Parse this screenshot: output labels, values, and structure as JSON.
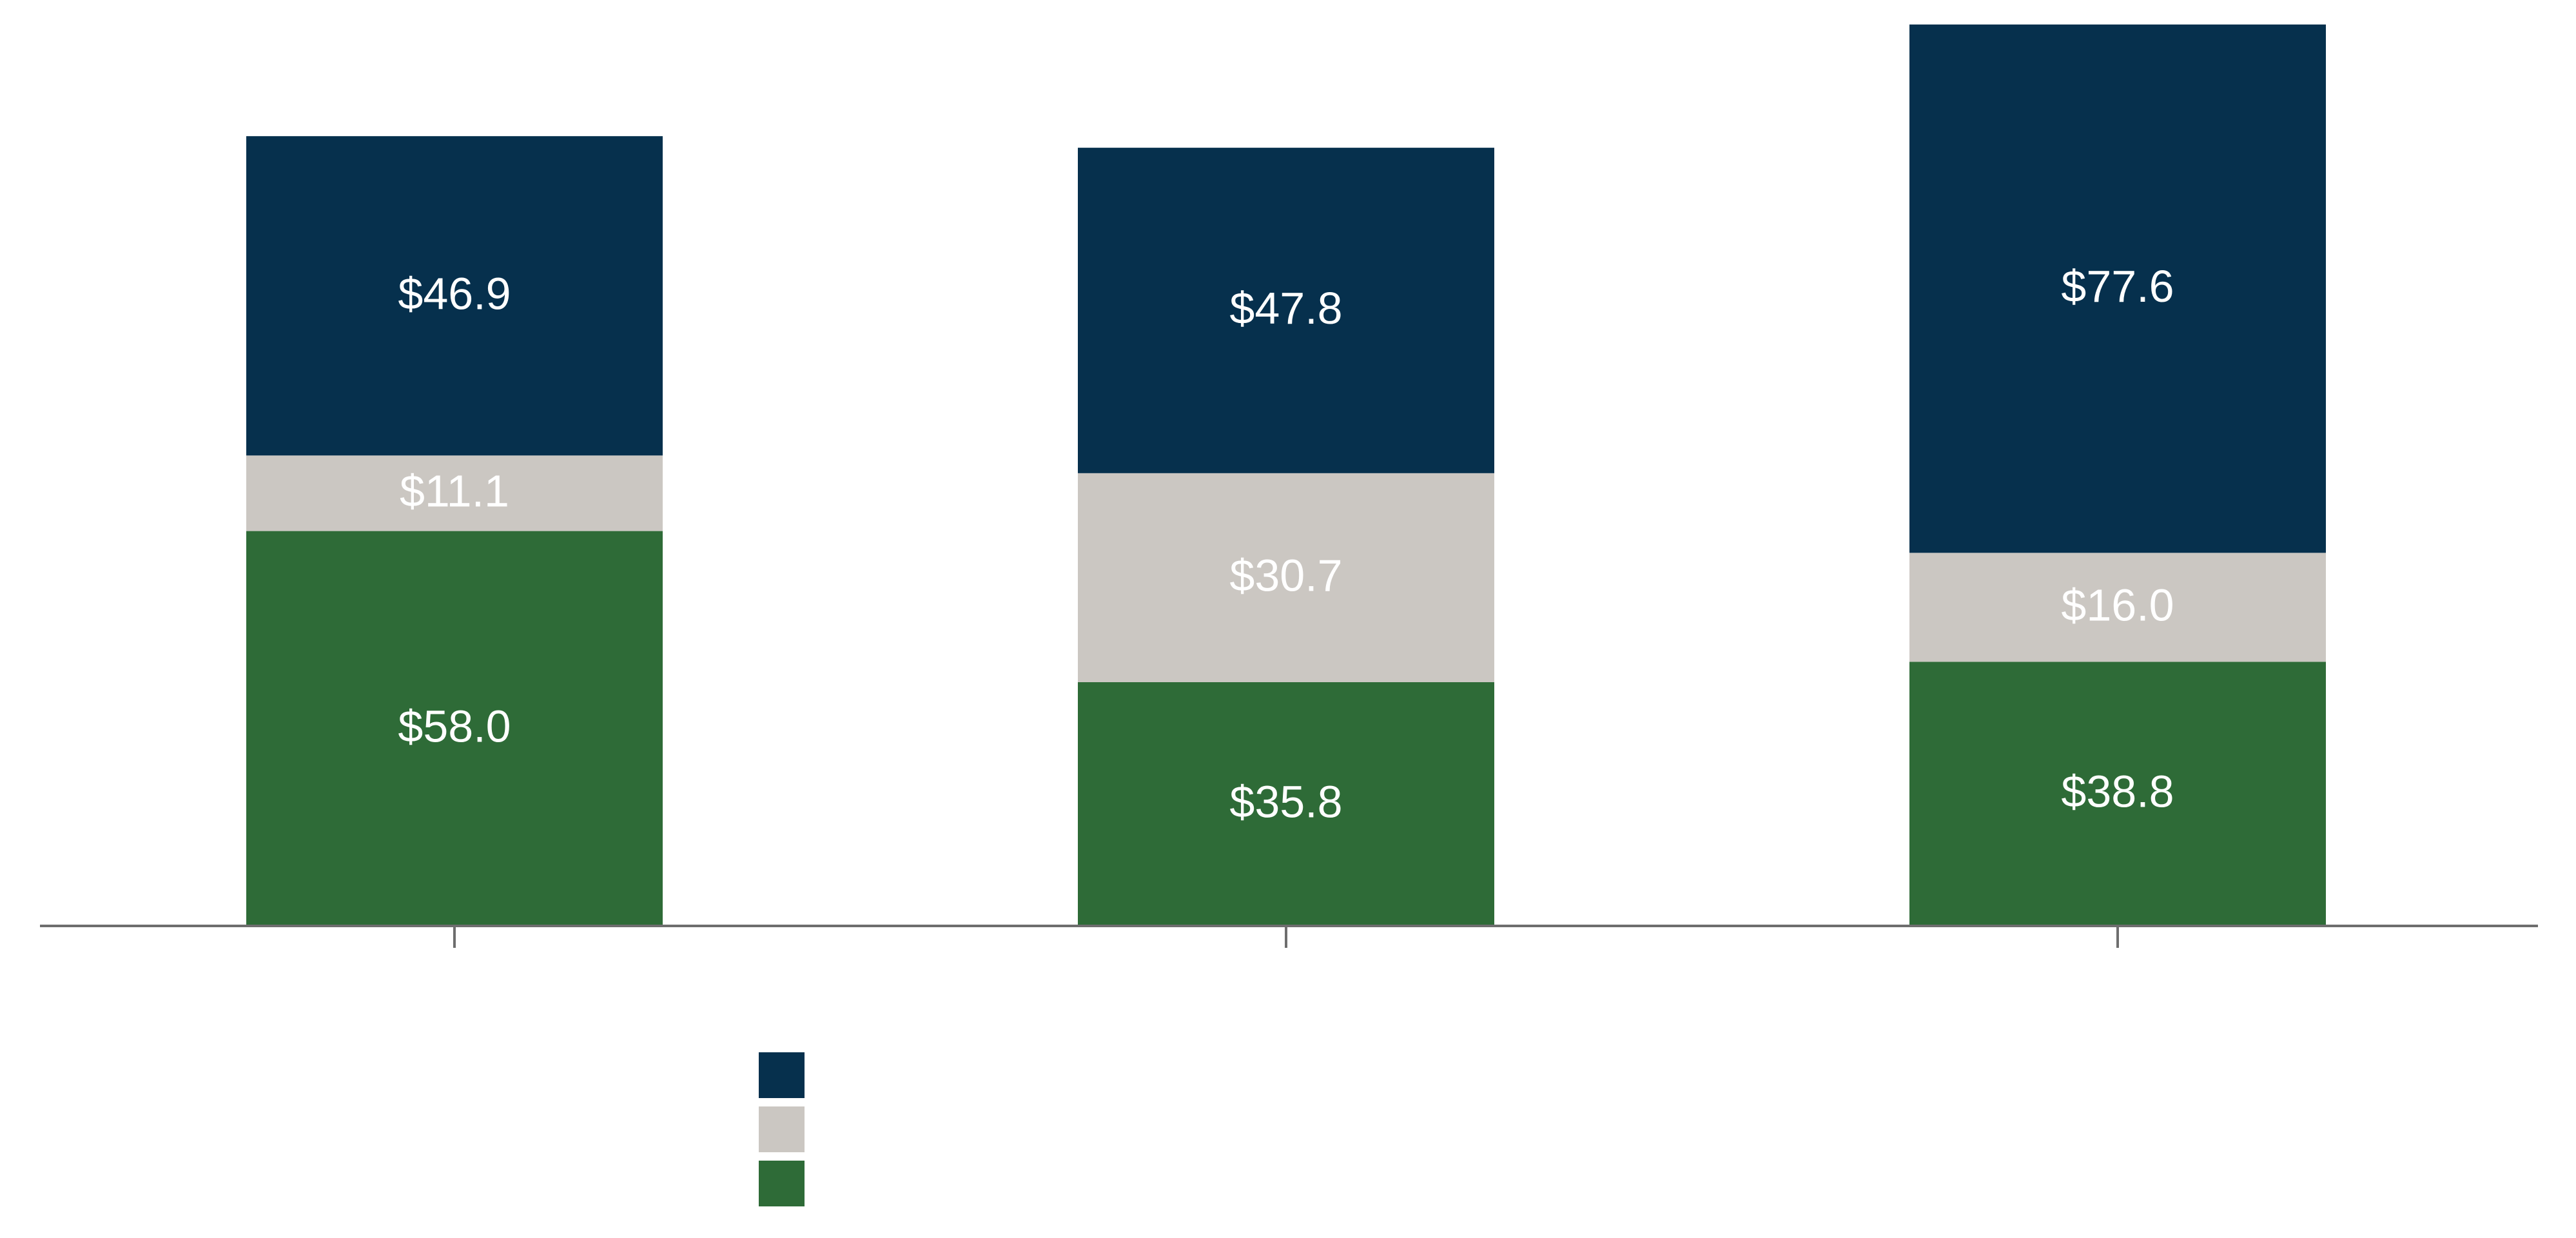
{
  "chart_data": {
    "type": "bar",
    "stacked": true,
    "title": "",
    "xlabel": "",
    "ylabel": "",
    "categories": [
      "",
      "",
      ""
    ],
    "series": [
      {
        "values": [
          58.0,
          35.8,
          38.8
        ],
        "labels": [
          "$58.0",
          "$35.8",
          "$38.8"
        ],
        "color": "#2e6b37",
        "label_color": "#ffffff"
      },
      {
        "values": [
          11.1,
          30.7,
          16.0
        ],
        "labels": [
          "$11.1",
          "$30.7",
          "$16.0"
        ],
        "color": "#cbc7c2",
        "label_color": "#ffffff"
      },
      {
        "values": [
          46.9,
          47.8,
          77.6
        ],
        "labels": [
          "$46.9",
          "$47.8",
          "$77.6"
        ],
        "color": "#06304d",
        "label_color": "#ffffff"
      }
    ],
    "ylim": [
      0,
      136
    ],
    "grid": false,
    "legend": {
      "position": "bottom",
      "entries": [
        "",
        "",
        ""
      ]
    },
    "axis_color": "#6e6e6e"
  }
}
